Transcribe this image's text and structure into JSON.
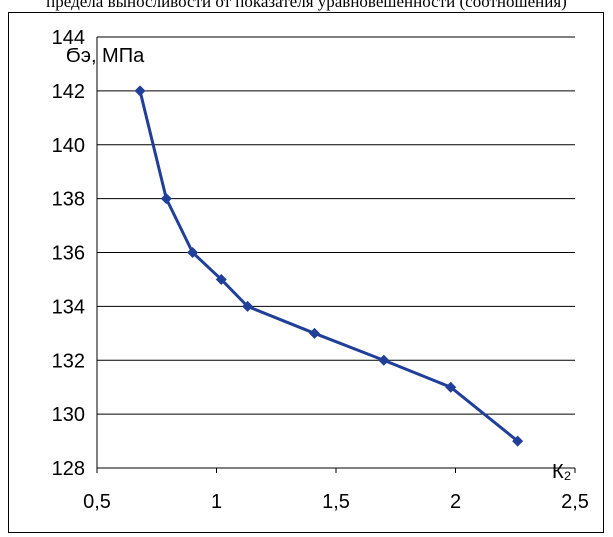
{
  "caption": "предела выносливости от показателя уравновешенности (соотношения)",
  "chart_data": {
    "type": "line",
    "ylabel": "Ϭэ, МПа",
    "xlabel": "К₂",
    "xlim": [
      0.5,
      2.5
    ],
    "ylim": [
      128,
      144
    ],
    "x_ticks": [
      "0,5",
      "1",
      "1,5",
      "2",
      "2,5"
    ],
    "y_ticks": [
      "128",
      "130",
      "132",
      "134",
      "136",
      "138",
      "140",
      "142",
      "144"
    ],
    "grid": "horizontal",
    "legend": "none",
    "series": [
      {
        "color": "#1f3f99",
        "marker": "diamond",
        "points": [
          [
            0.68,
            142
          ],
          [
            0.79,
            138
          ],
          [
            0.9,
            136
          ],
          [
            1.02,
            135
          ],
          [
            1.13,
            134
          ],
          [
            1.41,
            133
          ],
          [
            1.7,
            132
          ],
          [
            1.98,
            131
          ],
          [
            2.26,
            129
          ]
        ]
      }
    ]
  }
}
